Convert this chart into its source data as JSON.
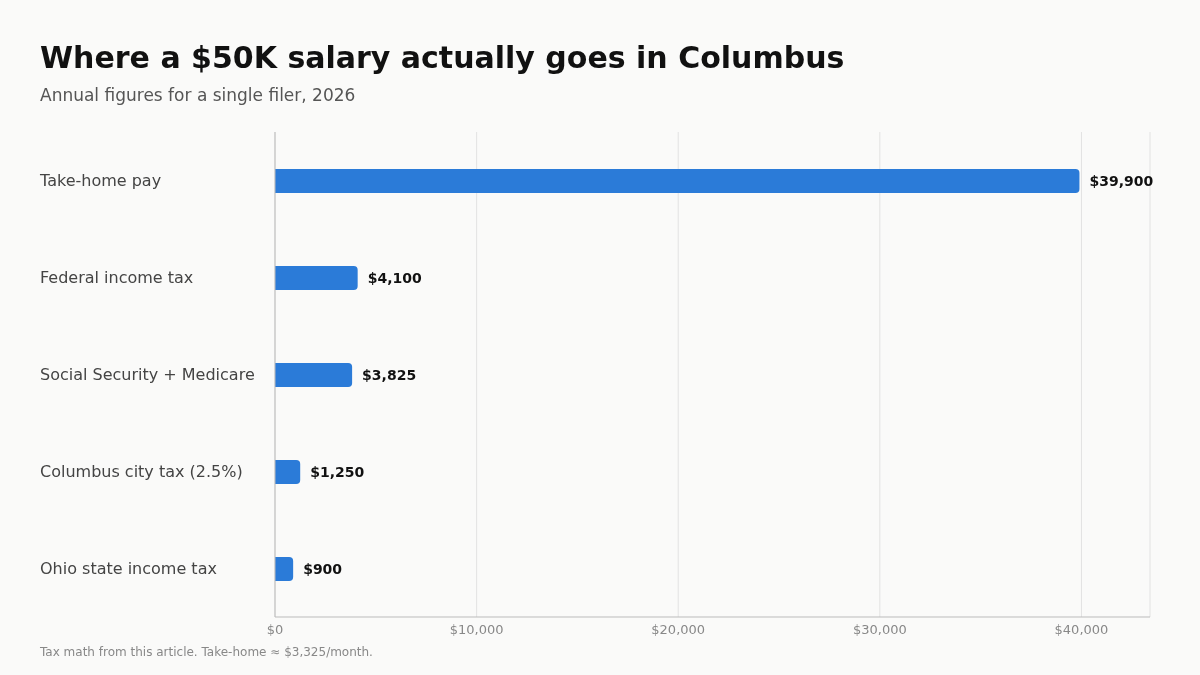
{
  "chart_data": {
    "type": "bar",
    "orientation": "horizontal",
    "title": "Where a $50K salary actually goes in Columbus",
    "subtitle": "Annual figures for a single filer, 2026",
    "categories": [
      "Take-home pay",
      "Federal income tax",
      "Social Security + Medicare",
      "Columbus city tax (2.5%)",
      "Ohio state income tax"
    ],
    "values": [
      39900,
      4100,
      3825,
      1250,
      900
    ],
    "value_labels": [
      "$39,900",
      "$4,100",
      "$3,825",
      "$1,250",
      "$900"
    ],
    "color": "#2b7bd8",
    "xlim": [
      0,
      43400
    ],
    "xticks": [
      {
        "value": 0,
        "label": "$0"
      },
      {
        "value": 10000,
        "label": "$10,000"
      },
      {
        "value": 20000,
        "label": "$20,000"
      },
      {
        "value": 30000,
        "label": "$30,000"
      },
      {
        "value": 40000,
        "label": "$40,000"
      }
    ],
    "grid": "x",
    "legend": false,
    "annotations": [
      "Tax math from this article. Take-home ≈ $3,325/month."
    ]
  }
}
